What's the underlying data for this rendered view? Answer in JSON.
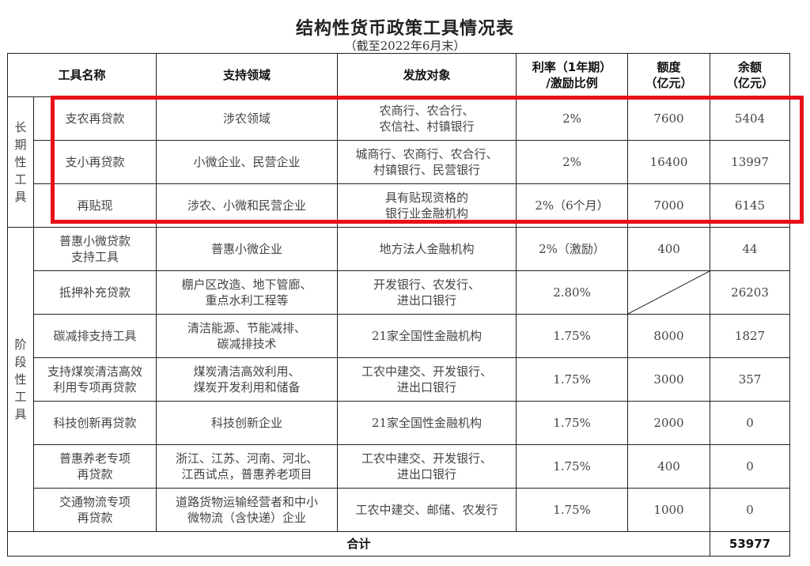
{
  "document": {
    "title": "结构性货币政策工具情况表",
    "subtitle": "（截至2022年6月末）"
  },
  "table": {
    "headers": {
      "name": "工具名称",
      "field": "支持领域",
      "target": "发放对象",
      "rate_line1": "利率（1年期）",
      "rate_line2": "/激励比例",
      "quota_line1": "额度",
      "quota_line2": "（亿元）",
      "balance_line1": "余额",
      "balance_line2": "（亿元）"
    },
    "categories": {
      "long_term": [
        "长",
        "期",
        "性",
        "工",
        "具"
      ],
      "phased": [
        "阶",
        "段",
        "性",
        "工",
        "具"
      ]
    },
    "rows": [
      {
        "name": "支农再贷款",
        "field": "涉农领域",
        "target": "农商行、农合行、\n农信社、村镇银行",
        "rate": "2%",
        "quota": "7600",
        "balance": "5404"
      },
      {
        "name": "支小再贷款",
        "field": "小微企业、民营企业",
        "target": "城商行、农商行、农合行、\n村镇银行、民营银行",
        "rate": "2%",
        "quota": "16400",
        "balance": "13997"
      },
      {
        "name": "再贴现",
        "field": "涉农、小微和民营企业",
        "target": "具有贴现资格的\n银行业金融机构",
        "rate": "2%（6个月）",
        "quota": "7000",
        "balance": "6145"
      },
      {
        "name": "普惠小微贷款\n支持工具",
        "field": "普惠小微企业",
        "target": "地方法人金融机构",
        "rate": "2%（激励）",
        "quota": "400",
        "balance": "44"
      },
      {
        "name": "抵押补充贷款",
        "field": "棚户区改造、地下管廊、\n重点水利工程等",
        "target": "开发银行、农发行、\n进出口银行",
        "rate": "2.80%",
        "quota": "",
        "balance": "26203"
      },
      {
        "name": "碳减排支持工具",
        "field": "清洁能源、节能减排、\n碳减排技术",
        "target": "21家全国性金融机构",
        "rate": "1.75%",
        "quota": "8000",
        "balance": "1827"
      },
      {
        "name": "支持煤炭清洁高效\n利用专项再贷款",
        "field": "煤炭清洁高效利用、\n煤炭开发利用和储备",
        "target": "工农中建交、开发银行、\n进出口银行",
        "rate": "1.75%",
        "quota": "3000",
        "balance": "357"
      },
      {
        "name": "科技创新再贷款",
        "field": "科技创新企业",
        "target": "21家全国性金融机构",
        "rate": "1.75%",
        "quota": "2000",
        "balance": "0"
      },
      {
        "name": "普惠养老专项\n再贷款",
        "field": "浙江、江苏、河南、河北、\n江西试点，普惠养老项目",
        "target": "工农中建交、开发银行、\n进出口银行",
        "rate": "1.75%",
        "quota": "400",
        "balance": "0"
      },
      {
        "name": "交通物流专项\n再贷款",
        "field": "道路货物运输经营者和中小\n微物流（含快递）企业",
        "target": "工农中建交、邮储、农发行",
        "rate": "1.75%",
        "quota": "1000",
        "balance": "0"
      }
    ],
    "total": {
      "label": "合计",
      "balance": "53977"
    }
  },
  "highlight": {
    "color": "#e8101a"
  }
}
